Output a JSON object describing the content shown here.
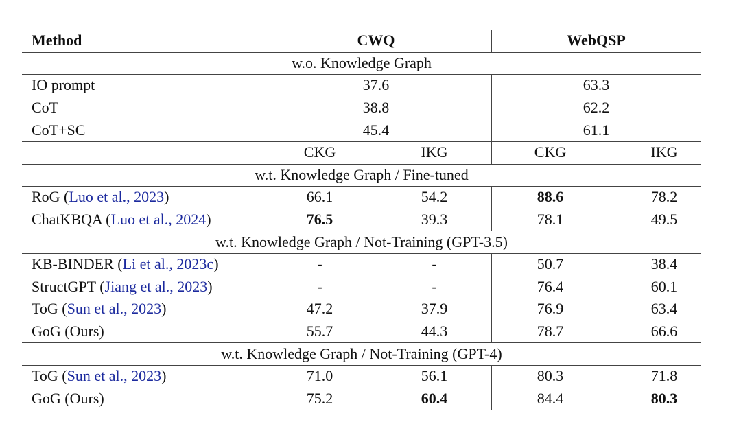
{
  "table": {
    "header": [
      "Method",
      "CWQ",
      "WebQSP"
    ],
    "section_wo": {
      "title": "w.o. Knowledge Graph",
      "rows": [
        {
          "method": [
            {
              "text": "IO prompt"
            }
          ],
          "values": [
            "37.6",
            "63.3"
          ]
        },
        {
          "method": [
            {
              "text": "CoT"
            }
          ],
          "values": [
            "38.8",
            "62.2"
          ]
        },
        {
          "method": [
            {
              "text": "CoT+SC"
            }
          ],
          "values": [
            "45.4",
            "61.1"
          ]
        }
      ]
    },
    "subheader": [
      "CKG",
      "IKG",
      "CKG",
      "IKG"
    ],
    "sections": [
      {
        "title": "w.t. Knowledge Graph / Fine-tuned",
        "rows": [
          {
            "method": [
              {
                "text": "RoG ("
              },
              {
                "text": "Luo et al., 2023",
                "cite": true
              },
              {
                "text": ")"
              }
            ],
            "values": [
              "66.1",
              "54.2",
              {
                "text": "88.6",
                "bold": true
              },
              "78.2"
            ]
          },
          {
            "method": [
              {
                "text": "ChatKBQA ("
              },
              {
                "text": "Luo et al., 2024",
                "cite": true
              },
              {
                "text": ")"
              }
            ],
            "values": [
              {
                "text": "76.5",
                "bold": true
              },
              "39.3",
              "78.1",
              "49.5"
            ]
          }
        ]
      },
      {
        "title": "w.t. Knowledge Graph / Not-Training (GPT-3.5)",
        "rows": [
          {
            "method": [
              {
                "text": "KB-BINDER ("
              },
              {
                "text": "Li et al., 2023c",
                "cite": true
              },
              {
                "text": ")"
              }
            ],
            "values": [
              "-",
              "-",
              "50.7",
              "38.4"
            ]
          },
          {
            "method": [
              {
                "text": "StructGPT ("
              },
              {
                "text": "Jiang et al., 2023",
                "cite": true
              },
              {
                "text": ")"
              }
            ],
            "values": [
              "-",
              "-",
              "76.4",
              "60.1"
            ]
          },
          {
            "method": [
              {
                "text": "ToG ("
              },
              {
                "text": "Sun et al., 2023",
                "cite": true
              },
              {
                "text": ")"
              }
            ],
            "values": [
              "47.2",
              "37.9",
              "76.9",
              "63.4"
            ]
          },
          {
            "method": [
              {
                "text": "GoG (Ours)"
              }
            ],
            "values": [
              "55.7",
              "44.3",
              "78.7",
              "66.6"
            ]
          }
        ]
      },
      {
        "title": "w.t. Knowledge Graph / Not-Training (GPT-4)",
        "rows": [
          {
            "method": [
              {
                "text": "ToG ("
              },
              {
                "text": "Sun et al., 2023",
                "cite": true
              },
              {
                "text": ")"
              }
            ],
            "values": [
              "71.0",
              "56.1",
              "80.3",
              "71.8"
            ]
          },
          {
            "method": [
              {
                "text": "GoG (Ours)"
              }
            ],
            "values": [
              "75.2",
              {
                "text": "60.4",
                "bold": true
              },
              "84.4",
              {
                "text": "80.3",
                "bold": true
              }
            ]
          }
        ]
      }
    ]
  }
}
